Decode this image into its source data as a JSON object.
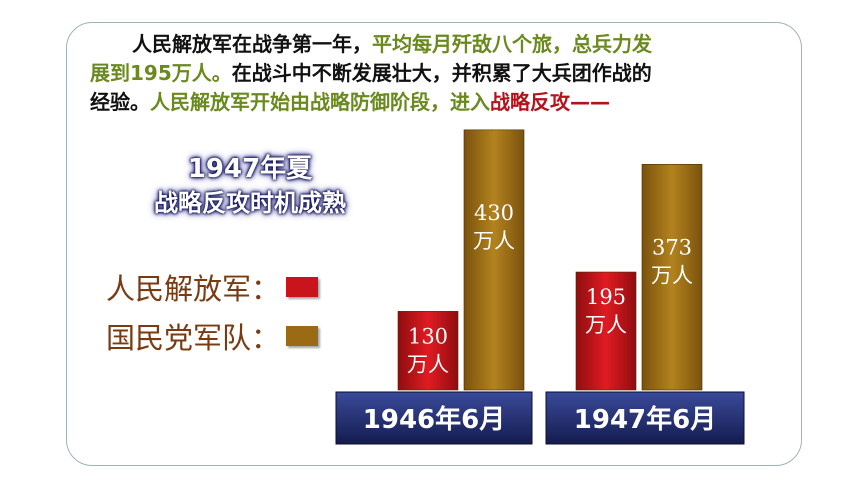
{
  "intro": {
    "line1_a": "人民解放军在战争第一年，",
    "line1_b": "平均每月歼敌八个旅，总兵力发",
    "line2_a": "展到195万人。",
    "line2_b": "在战斗中不断发展壮大，并积累了大兵团作战的",
    "line3_a": "经验。",
    "line3_b": "人民解放军",
    "line3_c": "开始由战略防御阶段，进入",
    "line3_d": "战略反攻——"
  },
  "headline": {
    "line1": "1947年夏",
    "line2": "战略反攻时机成熟"
  },
  "colors": {
    "pla": "#c8141a",
    "kmt": "#9a6a14",
    "category_box": "#1f2a66",
    "green_text": "#6a8a1f",
    "red_text": "#b5121b"
  },
  "chart_data": {
    "type": "bar",
    "categories": [
      "1946年6月",
      "1947年6月"
    ],
    "unit": "万人",
    "series": [
      {
        "name": "人民解放军：",
        "values": [
          130,
          195
        ]
      },
      {
        "name": "国民党军队：",
        "values": [
          430,
          373
        ]
      }
    ],
    "legend": "left"
  }
}
